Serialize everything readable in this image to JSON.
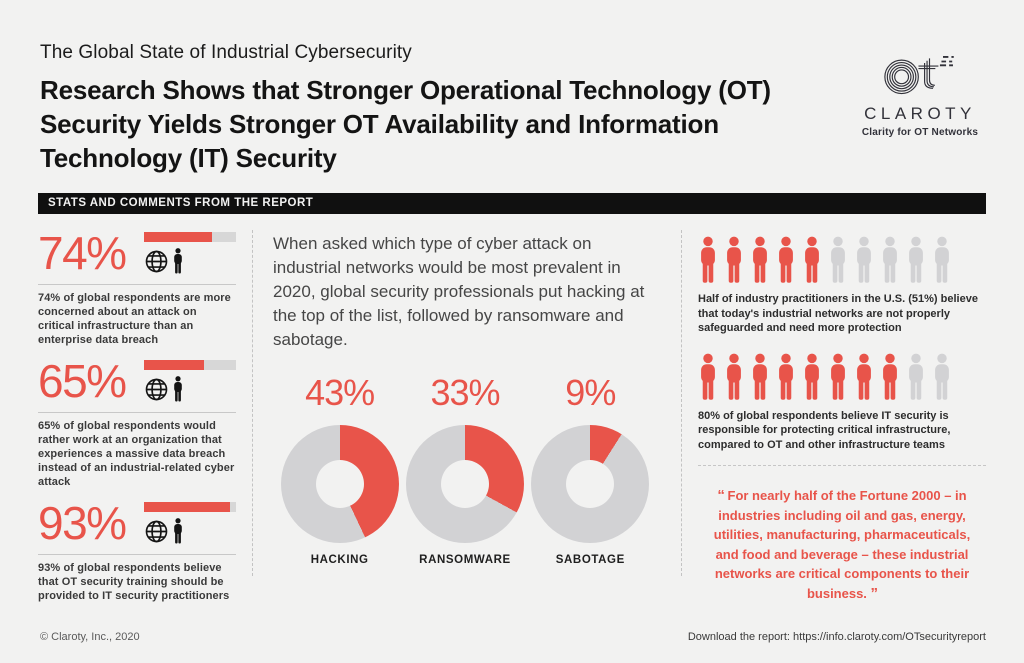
{
  "page": {
    "accent_red": "#e8544a",
    "inactive_gray": "#d2d2d4",
    "background": "#f2f2f1",
    "bar_black": "#101010"
  },
  "icons": {
    "claroty-logo-icon": "stylized OT monogram with motion dashes",
    "globe-icon": "wireframe globe",
    "person-icon": "person silhouette pictogram"
  },
  "header": {
    "kicker": "The Global State of Industrial Cybersecurity",
    "title": "Research Shows that Stronger Operational Technology (OT) Security Yields Stronger OT Availability and Information Technology (IT) Security"
  },
  "logo": {
    "name": "CLAROTY",
    "tagline": "Clarity for OT Networks"
  },
  "section_bar": {
    "label": "STATS AND COMMENTS FROM THE REPORT"
  },
  "left_stats": [
    {
      "value": "74%",
      "bar_percent": 74,
      "caption": "74% of global respondents are more concerned about an attack on critical infrastructure than an enterprise data breach"
    },
    {
      "value": "65%",
      "bar_percent": 65,
      "caption": "65% of global respondents would rather work at an organization that experiences a massive data breach instead of an industrial-related cyber attack"
    },
    {
      "value": "93%",
      "bar_percent": 93,
      "caption": "93% of global respondents believe that OT security training should be provided to IT security practitioners"
    }
  ],
  "middle": {
    "intro": "When asked which type of cyber attack on industrial networks would be most prevalent in 2020, global security professionals put hacking at the top of the list, followed by ransomware and sabotage."
  },
  "chart_data": {
    "type": "pie",
    "variant": "donut",
    "title": "Most prevalent cyber attack types on industrial networks in 2020",
    "categories": [
      "HACKING",
      "RANSOMWARE",
      "SABOTAGE"
    ],
    "values": [
      43,
      33,
      9
    ],
    "labels": [
      "43%",
      "33%",
      "9%"
    ],
    "colors": {
      "slice": "#e8544a",
      "remainder": "#d2d2d4"
    },
    "legend_position": "below-each-donut",
    "start_angle_deg": 0,
    "direction": "clockwise"
  },
  "pictograms": [
    {
      "red": 5,
      "gray": 5,
      "total": 10,
      "caption": "Half of industry practitioners in the U.S. (51%) believe that today's industrial networks are not properly safeguarded and need more protection"
    },
    {
      "red": 8,
      "gray": 2,
      "total": 10,
      "caption": "80% of global respondents believe IT security is responsible for protecting critical infrastructure, compared to OT and other infrastructure teams"
    }
  ],
  "quote": {
    "open": "“",
    "text": "For nearly half of the Fortune 2000 – in industries including oil and gas, energy, utilities, manufacturing, pharmaceuticals, and food and beverage – these industrial networks are critical components to their business.",
    "close": "”"
  },
  "footer": {
    "copyright": "© Claroty, Inc., 2020",
    "download": "Download the report: https://info.claroty.com/OTsecurityreport"
  }
}
